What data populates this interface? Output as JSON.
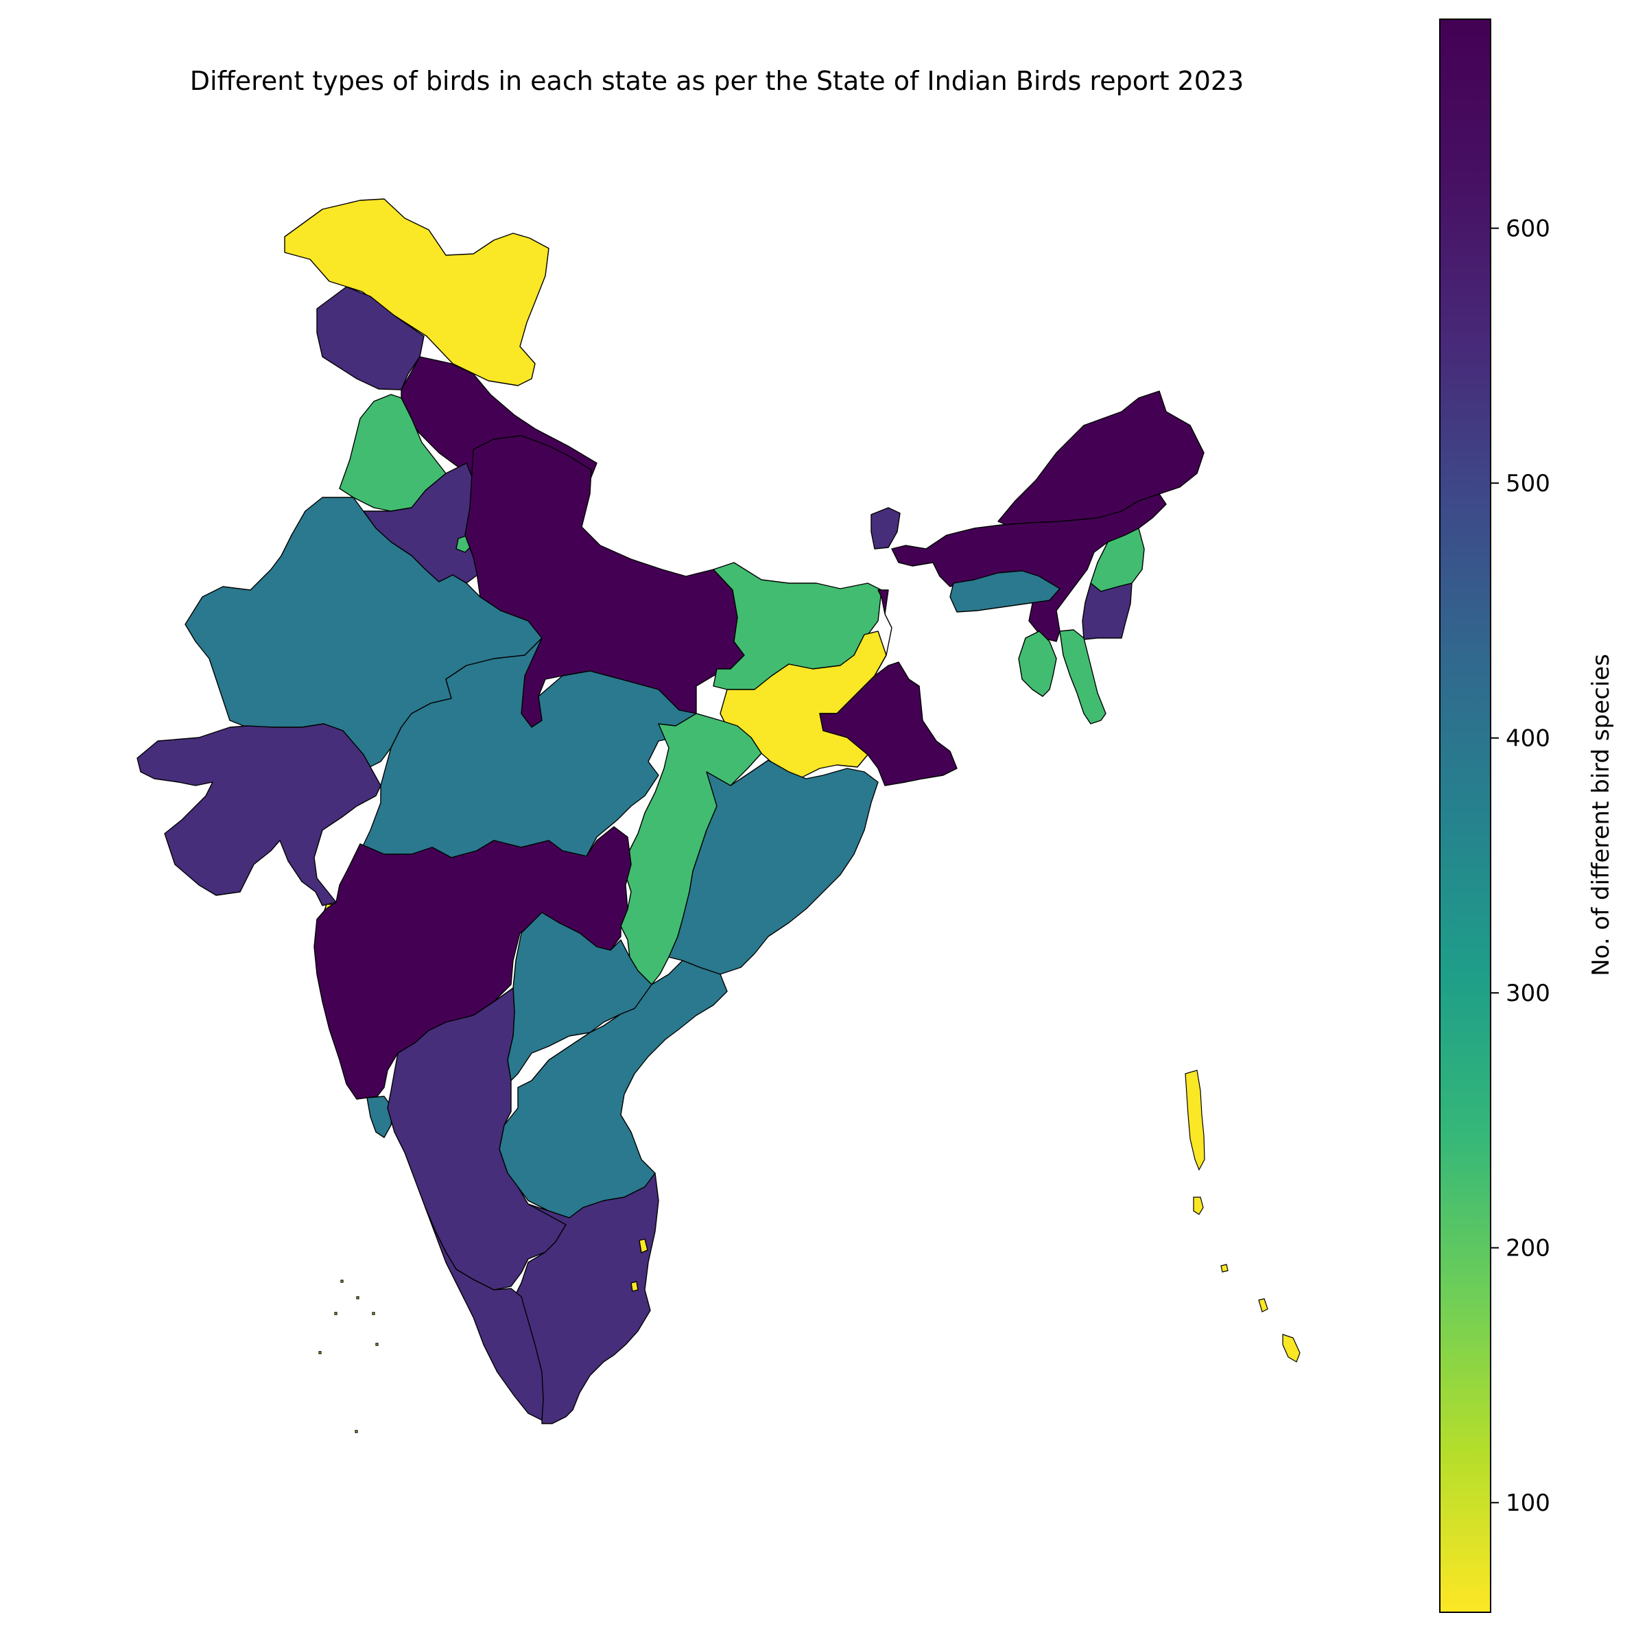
{
  "title": "Different types of birds in each state as per the State of Indian Birds report 2023",
  "colorbar": {
    "label": "No. of different bird species",
    "min": 57,
    "max": 682,
    "ticks": [
      100,
      200,
      300,
      400,
      500,
      600
    ],
    "colormap": "viridis_r"
  },
  "regions": [
    {
      "name": "Jammu and Kashmir",
      "value": 60
    },
    {
      "name": "Himachal Pradesh",
      "value": 545
    },
    {
      "name": "Uttarakhand",
      "value": 682
    },
    {
      "name": "Punjab",
      "value": 230
    },
    {
      "name": "Haryana",
      "value": 545
    },
    {
      "name": "Delhi",
      "value": 230
    },
    {
      "name": "Rajasthan",
      "value": 390
    },
    {
      "name": "Uttar Pradesh",
      "value": 682
    },
    {
      "name": "Gujarat",
      "value": 545
    },
    {
      "name": "Madhya Pradesh",
      "value": 390
    },
    {
      "name": "Bihar",
      "value": 230
    },
    {
      "name": "Jharkhand",
      "value": 60
    },
    {
      "name": "West Bengal",
      "value": 682
    },
    {
      "name": "Sikkim",
      "value": 545
    },
    {
      "name": "Arunachal Pradesh",
      "value": 682
    },
    {
      "name": "Assam",
      "value": 682
    },
    {
      "name": "Nagaland",
      "value": 230
    },
    {
      "name": "Manipur",
      "value": 545
    },
    {
      "name": "Meghalaya",
      "value": 390
    },
    {
      "name": "Tripura",
      "value": 230
    },
    {
      "name": "Mizoram",
      "value": 230
    },
    {
      "name": "Chhattisgarh",
      "value": 230
    },
    {
      "name": "Odisha",
      "value": 390
    },
    {
      "name": "Maharashtra",
      "value": 682
    },
    {
      "name": "Telangana",
      "value": 390
    },
    {
      "name": "Andhra Pradesh",
      "value": 390
    },
    {
      "name": "Goa",
      "value": 390
    },
    {
      "name": "Karnataka",
      "value": 545
    },
    {
      "name": "Tamil Nadu",
      "value": 545
    },
    {
      "name": "Kerala",
      "value": 545
    },
    {
      "name": "Puducherry",
      "value": 60
    },
    {
      "name": "Dadra and Nagar Haveli",
      "value": 60
    },
    {
      "name": "Andaman and Nicobar Islands",
      "value": 60
    },
    {
      "name": "Lakshadweep",
      "value": 60
    }
  ]
}
